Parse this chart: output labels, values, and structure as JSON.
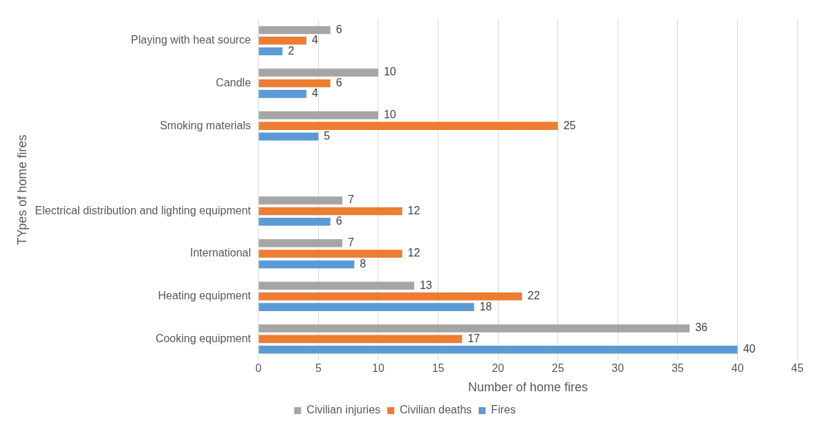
{
  "chart_data": {
    "type": "bar",
    "orientation": "horizontal",
    "xlabel": "Number of home fires",
    "ylabel": "TYpes of home fires",
    "categories": [
      "Playing with heat source",
      "Candle",
      "Smoking materials",
      null,
      "Electrical distribution and lighting equipment",
      "International",
      "Heating equipment",
      "Cooking equipment"
    ],
    "series": [
      {
        "name": "Civilian injuries",
        "color": "#a5a5a5",
        "values": [
          6,
          10,
          10,
          null,
          7,
          7,
          13,
          36
        ]
      },
      {
        "name": "Civilian deaths",
        "color": "#ed7d31",
        "values": [
          4,
          6,
          25,
          null,
          12,
          12,
          22,
          17
        ]
      },
      {
        "name": "Fires",
        "color": "#5b9bd5",
        "values": [
          2,
          4,
          5,
          null,
          6,
          8,
          18,
          40
        ]
      }
    ],
    "xlim": [
      0,
      45
    ],
    "xticks": [
      0,
      5,
      10,
      15,
      20,
      25,
      30,
      35,
      40,
      45
    ],
    "grid": "x",
    "legend": "bottom",
    "data_labels": true
  }
}
